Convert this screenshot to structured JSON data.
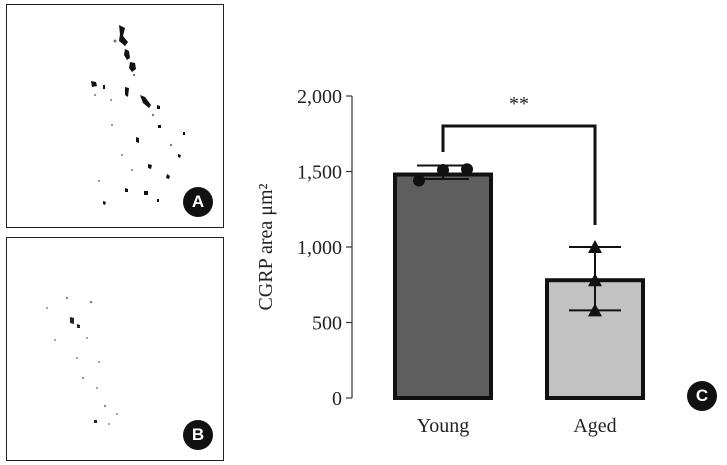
{
  "panels": {
    "a_label": "A",
    "b_label": "B",
    "c_label": "C"
  },
  "chart_data": {
    "type": "bar",
    "categories": [
      "Young",
      "Aged"
    ],
    "values": [
      1480,
      780
    ],
    "error": [
      [
        1450,
        1540
      ],
      [
        580,
        1000
      ]
    ],
    "points": [
      [
        1440,
        1510,
        1515
      ],
      [
        580,
        780,
        1000
      ]
    ],
    "markers": [
      "circle",
      "triangle"
    ],
    "colors": [
      "#5e5e5e",
      "#c2c2c2"
    ],
    "ylabel": "CGRP area μm²",
    "ylim": [
      0,
      2000
    ],
    "yticks": [
      0,
      500,
      1000,
      1500,
      2000
    ],
    "ytick_labels": [
      "0",
      "500",
      "1,000",
      "1,500",
      "2,000"
    ],
    "significance": "**"
  }
}
